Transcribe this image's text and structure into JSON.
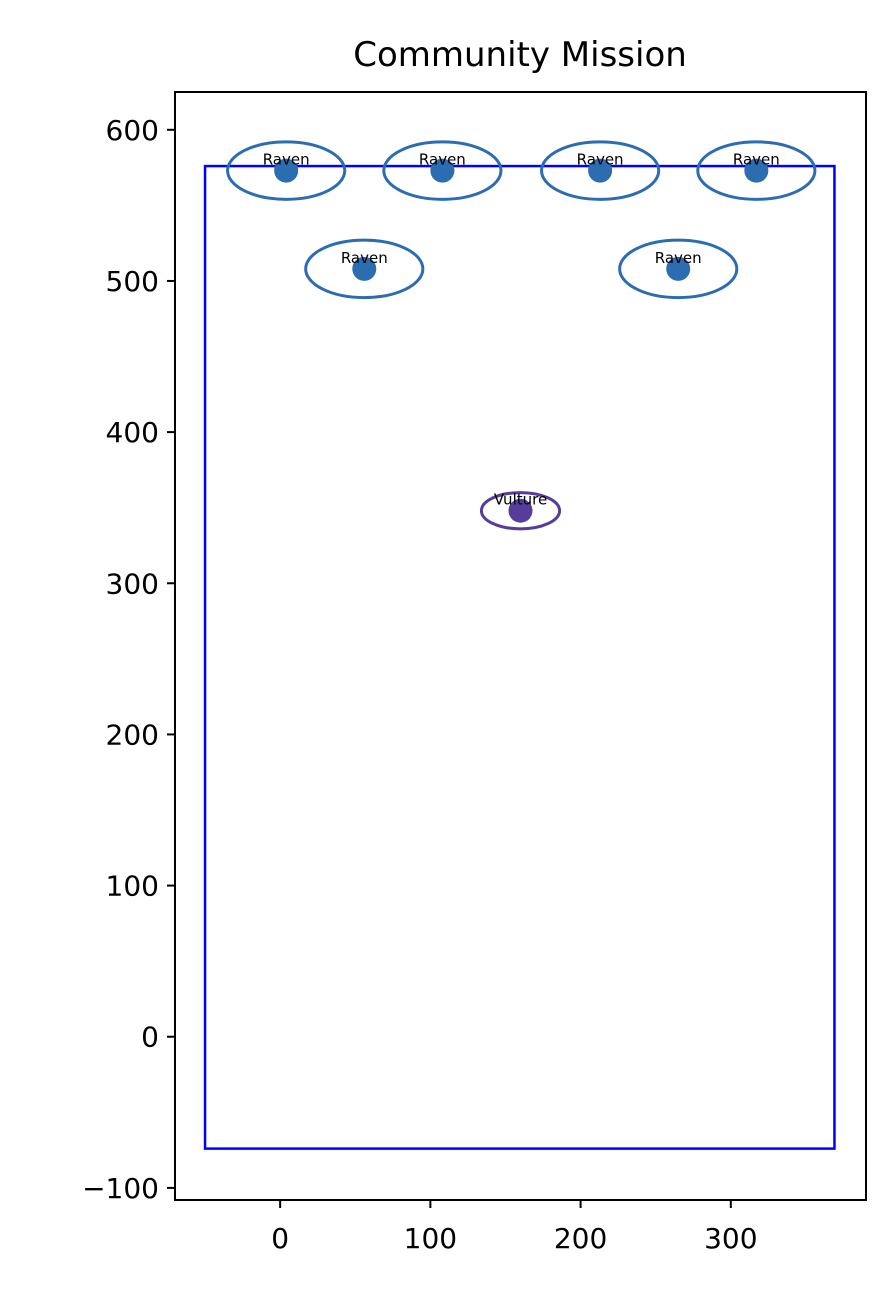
{
  "chart_data": {
    "type": "scatter",
    "title": "Community Mission",
    "xlabel": "",
    "ylabel": "",
    "xlim": [
      -70,
      390
    ],
    "ylim": [
      -108,
      625
    ],
    "xticks": [
      0,
      100,
      200,
      300
    ],
    "xtick_labels": [
      "0",
      "100",
      "200",
      "300"
    ],
    "yticks": [
      -100,
      0,
      100,
      200,
      300,
      400,
      500,
      600
    ],
    "ytick_labels": [
      "−100",
      "0",
      "100",
      "200",
      "300",
      "400",
      "500",
      "600"
    ],
    "grid": false,
    "colors": {
      "raven": "#2c6db1",
      "vulture": "#563d9c",
      "boundary": "#0000ff",
      "axes": "#000000"
    },
    "boundary": {
      "x": [
        -50,
        369
      ],
      "y": [
        -74,
        576
      ]
    },
    "points": [
      {
        "label": "Raven",
        "x": 4,
        "y": 573,
        "rx": 39,
        "ry": 19,
        "color": "#2c6db1"
      },
      {
        "label": "Raven",
        "x": 108,
        "y": 573,
        "rx": 39,
        "ry": 19,
        "color": "#2c6db1"
      },
      {
        "label": "Raven",
        "x": 213,
        "y": 573,
        "rx": 39,
        "ry": 19,
        "color": "#2c6db1"
      },
      {
        "label": "Raven",
        "x": 317,
        "y": 573,
        "rx": 39,
        "ry": 19,
        "color": "#2c6db1"
      },
      {
        "label": "Raven",
        "x": 56,
        "y": 508,
        "rx": 39,
        "ry": 19,
        "color": "#2c6db1"
      },
      {
        "label": "Raven",
        "x": 265,
        "y": 508,
        "rx": 39,
        "ry": 19,
        "color": "#2c6db1"
      },
      {
        "label": "Vulture",
        "x": 160,
        "y": 348,
        "rx": 26,
        "ry": 12,
        "color": "#563d9c"
      }
    ]
  }
}
